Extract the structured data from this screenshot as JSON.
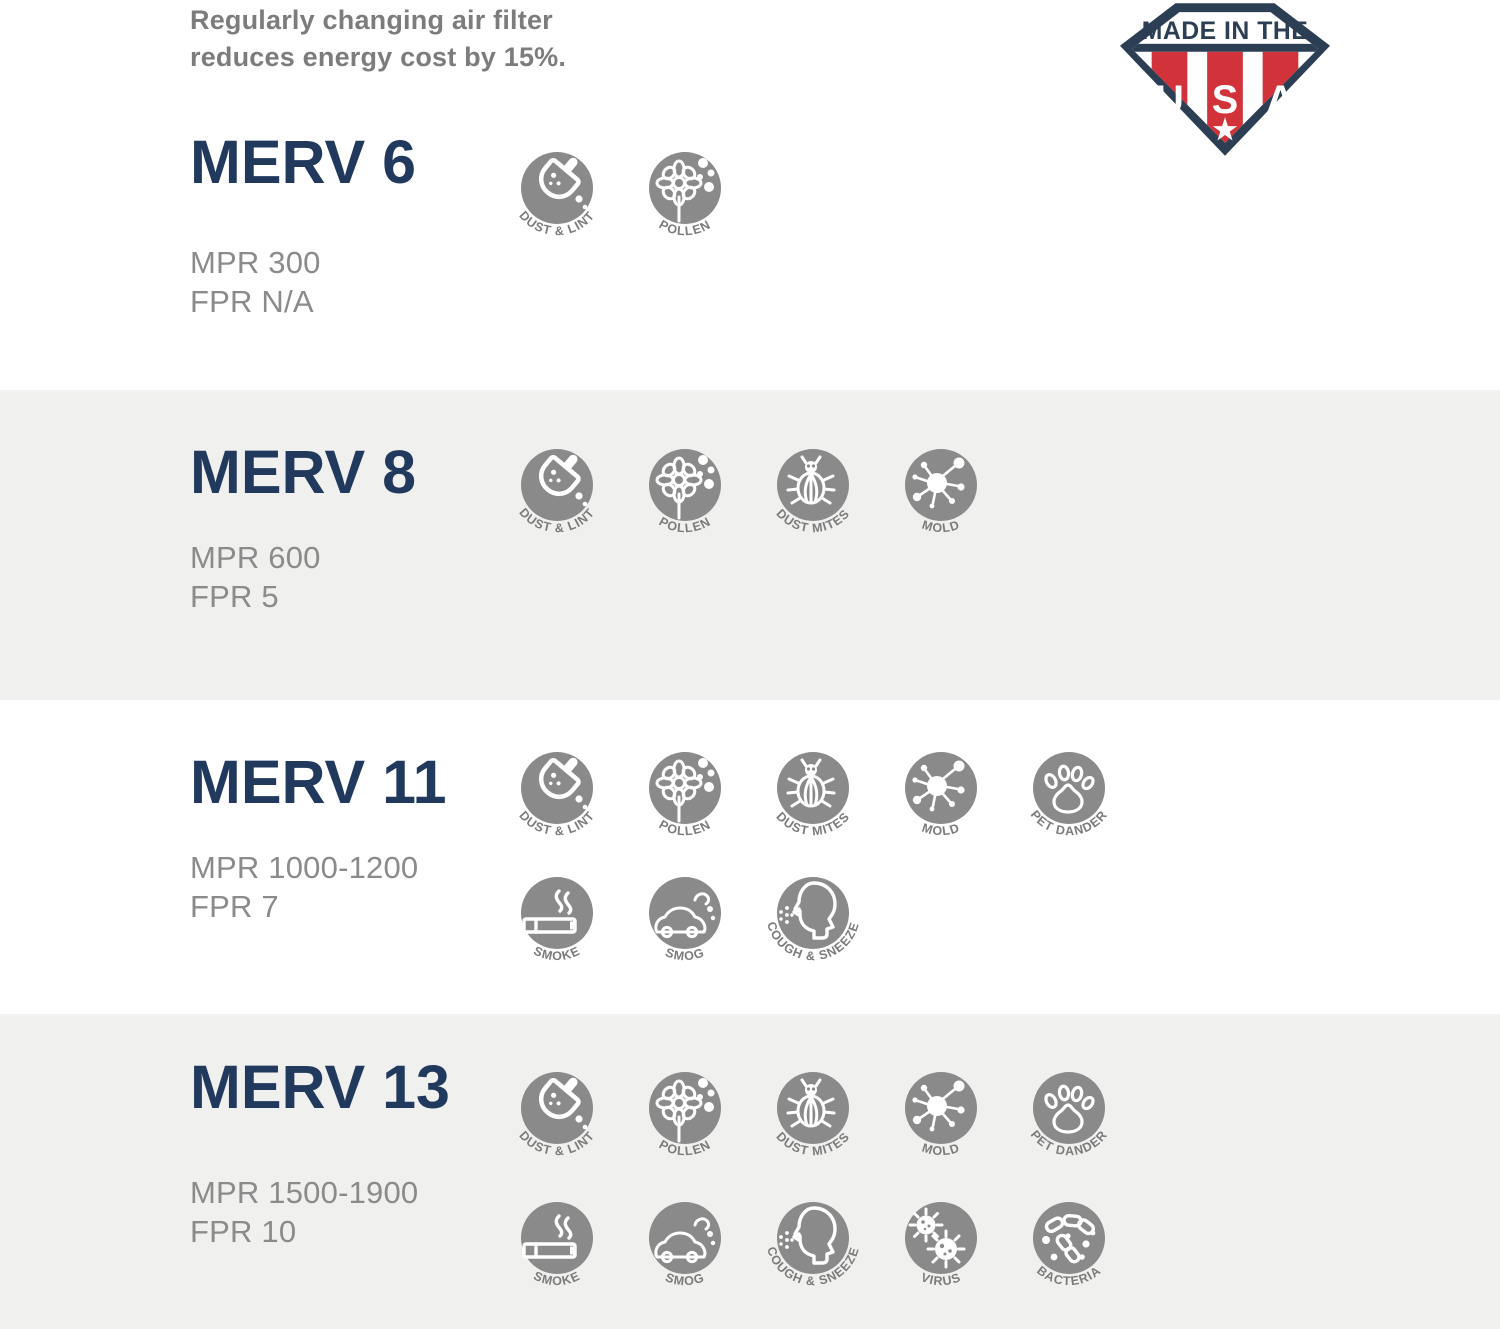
{
  "header": {
    "note_lines": [
      "Regularly changing air filter",
      "reduces energy cost by 15%."
    ],
    "badge": {
      "banner": "MADE IN THE",
      "letters": [
        "U",
        "S",
        "A"
      ],
      "navy": "#2c3e54",
      "red": "#d2333a",
      "white": "#ffffff"
    }
  },
  "colors": {
    "heading_navy": "#21395d",
    "body_gray": "#8b8b8b",
    "icon_gray": "#8a8a8a",
    "label_gray": "#7b7b7b",
    "section_white": "#ffffff",
    "section_gray": "#f0f0ef"
  },
  "sections": [
    {
      "title": "MERV 6",
      "mpr": "MPR 300",
      "fpr": "FPR N/A",
      "background": "#ffffff",
      "icon_rows": [
        [
          {
            "key": "dust-lint",
            "label": "DUST & LINT"
          },
          {
            "key": "pollen",
            "label": "POLLEN"
          }
        ]
      ]
    },
    {
      "title": "MERV 8",
      "mpr": "MPR 600",
      "fpr": "FPR 5",
      "background": "#f0f0ef",
      "icon_rows": [
        [
          {
            "key": "dust-lint",
            "label": "DUST & LINT"
          },
          {
            "key": "pollen",
            "label": "POLLEN"
          },
          {
            "key": "dust-mites",
            "label": "DUST MITES"
          },
          {
            "key": "mold",
            "label": "MOLD"
          }
        ]
      ]
    },
    {
      "title": "MERV 11",
      "mpr": "MPR 1000-1200",
      "fpr": "FPR 7",
      "background": "#ffffff",
      "icon_rows": [
        [
          {
            "key": "dust-lint",
            "label": "DUST & LINT"
          },
          {
            "key": "pollen",
            "label": "POLLEN"
          },
          {
            "key": "dust-mites",
            "label": "DUST MITES"
          },
          {
            "key": "mold",
            "label": "MOLD"
          },
          {
            "key": "pet-dander",
            "label": "PET DANDER"
          }
        ],
        [
          {
            "key": "smoke",
            "label": "SMOKE"
          },
          {
            "key": "smog",
            "label": "SMOG"
          },
          {
            "key": "cough-sneeze",
            "label": "COUGH & SNEEZE"
          }
        ]
      ]
    },
    {
      "title": "MERV 13",
      "mpr": "MPR 1500-1900",
      "fpr": "FPR 10",
      "background": "#f0f0ef",
      "icon_rows": [
        [
          {
            "key": "dust-lint",
            "label": "DUST & LINT"
          },
          {
            "key": "pollen",
            "label": "POLLEN"
          },
          {
            "key": "dust-mites",
            "label": "DUST MITES"
          },
          {
            "key": "mold",
            "label": "MOLD"
          },
          {
            "key": "pet-dander",
            "label": "PET DANDER"
          }
        ],
        [
          {
            "key": "smoke",
            "label": "SMOKE"
          },
          {
            "key": "smog",
            "label": "SMOG"
          },
          {
            "key": "cough-sneeze",
            "label": "COUGH & SNEEZE"
          },
          {
            "key": "virus",
            "label": "VIRUS"
          },
          {
            "key": "bacteria",
            "label": "BACTERIA"
          }
        ]
      ]
    }
  ]
}
